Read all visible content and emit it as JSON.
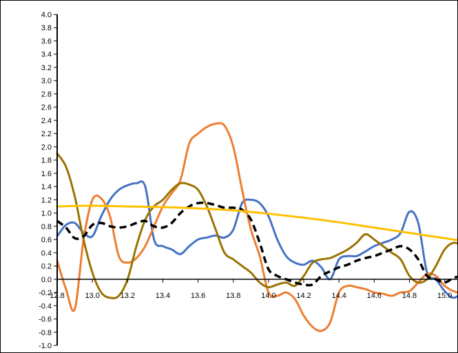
{
  "chart_data": {
    "type": "line",
    "title": "",
    "xlabel": "",
    "ylabel": "",
    "xlim": [
      12.8,
      15.15
    ],
    "ylim": [
      -1.0,
      4.0
    ],
    "x_ticks": [
      12.8,
      13.0,
      13.2,
      13.4,
      13.6,
      13.8,
      14.0,
      14.2,
      14.4,
      14.6,
      14.8,
      15.0
    ],
    "x_tick_labels": [
      "12.8",
      "13.0",
      "13.2",
      "13.4",
      "13.6",
      "13.8",
      "14.0",
      "14.2",
      "14.4",
      "14.6",
      "14.8",
      "15.0"
    ],
    "y_ticks": [
      -1.0,
      -0.8,
      -0.6,
      -0.4,
      -0.2,
      0.0,
      0.2,
      0.4,
      0.6,
      0.8,
      1.0,
      1.2,
      1.4,
      1.6,
      1.8,
      2.0,
      2.2,
      2.4,
      2.6,
      2.8,
      3.0,
      3.2,
      3.4,
      3.6,
      3.8,
      4.0
    ],
    "y_tick_labels": [
      "-1.0",
      "-0.8",
      "-0.6",
      "-0.4",
      "-0.2",
      "0.0",
      "0.2",
      "0.4",
      "0.6",
      "0.8",
      "1.0",
      "1.2",
      "1.4",
      "1.6",
      "1.8",
      "2.0",
      "2.2",
      "2.4",
      "2.6",
      "2.8",
      "3.0",
      "3.2",
      "3.4",
      "3.6",
      "3.8",
      "4.0"
    ],
    "grid": false,
    "legend": "none",
    "series": [
      {
        "color": "#4472C4",
        "style": "solid",
        "x": [
          12.8,
          12.85,
          12.9,
          12.95,
          13.0,
          13.05,
          13.1,
          13.15,
          13.2,
          13.25,
          13.3,
          13.35,
          13.4,
          13.45,
          13.5,
          13.55,
          13.6,
          13.65,
          13.7,
          13.75,
          13.8,
          13.85,
          13.9,
          13.95,
          14.0,
          14.05,
          14.1,
          14.15,
          14.2,
          14.25,
          14.3,
          14.35,
          14.4,
          14.45,
          14.5,
          14.55,
          14.6,
          14.65,
          14.7,
          14.75,
          14.8,
          14.85,
          14.9,
          14.95,
          15.0,
          15.05,
          15.1,
          15.15
        ],
        "y": [
          0.65,
          0.82,
          0.85,
          0.7,
          0.65,
          0.95,
          1.2,
          1.35,
          1.42,
          1.45,
          1.4,
          0.6,
          0.5,
          0.45,
          0.38,
          0.5,
          0.6,
          0.63,
          0.66,
          0.63,
          0.75,
          1.15,
          1.2,
          1.15,
          0.95,
          0.6,
          0.35,
          0.25,
          0.22,
          0.28,
          0.18,
          0.0,
          0.3,
          0.35,
          0.35,
          0.42,
          0.5,
          0.55,
          0.6,
          0.7,
          1.02,
          0.85,
          0.1,
          0.0,
          -0.18,
          -0.28,
          -0.2,
          -0.1
        ]
      },
      {
        "color": "#ED7D31",
        "style": "solid",
        "x": [
          12.8,
          12.85,
          12.9,
          12.95,
          13.0,
          13.05,
          13.1,
          13.15,
          13.2,
          13.25,
          13.3,
          13.35,
          13.4,
          13.45,
          13.5,
          13.55,
          13.6,
          13.65,
          13.7,
          13.75,
          13.8,
          13.85,
          13.9,
          13.95,
          14.0,
          14.05,
          14.1,
          14.15,
          14.2,
          14.25,
          14.3,
          14.35,
          14.4,
          14.45,
          14.5,
          14.55,
          14.6,
          14.65,
          14.7,
          14.75,
          14.8,
          14.85,
          14.9,
          14.95,
          15.0,
          15.05,
          15.1,
          15.15
        ],
        "y": [
          0.28,
          -0.15,
          -0.45,
          0.6,
          1.2,
          1.22,
          0.95,
          0.35,
          0.25,
          0.32,
          0.5,
          0.8,
          1.1,
          1.3,
          1.5,
          2.05,
          2.2,
          2.3,
          2.35,
          2.32,
          2.0,
          1.35,
          0.75,
          0.35,
          -0.2,
          -0.25,
          -0.2,
          -0.3,
          -0.55,
          -0.72,
          -0.78,
          -0.65,
          -0.2,
          -0.1,
          -0.12,
          -0.15,
          -0.2,
          -0.22,
          -0.25,
          -0.2,
          -0.18,
          -0.05,
          0.08,
          0.05,
          -0.1,
          -0.18,
          -0.2,
          -0.1
        ]
      },
      {
        "color": "#997300",
        "style": "solid",
        "x": [
          12.8,
          12.85,
          12.9,
          12.95,
          13.0,
          13.05,
          13.1,
          13.15,
          13.2,
          13.25,
          13.3,
          13.35,
          13.4,
          13.45,
          13.5,
          13.55,
          13.6,
          13.65,
          13.7,
          13.75,
          13.8,
          13.85,
          13.9,
          13.95,
          14.0,
          14.05,
          14.1,
          14.15,
          14.2,
          14.25,
          14.3,
          14.35,
          14.4,
          14.45,
          14.5,
          14.55,
          14.6,
          14.65,
          14.7,
          14.75,
          14.8,
          14.85,
          14.9,
          14.95,
          15.0,
          15.05,
          15.1,
          15.15
        ],
        "y": [
          1.9,
          1.7,
          1.25,
          0.6,
          0.1,
          -0.2,
          -0.28,
          -0.25,
          0.0,
          0.5,
          0.9,
          1.1,
          1.2,
          1.35,
          1.45,
          1.43,
          1.35,
          1.1,
          0.75,
          0.4,
          0.3,
          0.2,
          0.1,
          -0.05,
          -0.12,
          -0.08,
          -0.05,
          -0.1,
          0.05,
          0.25,
          0.3,
          0.32,
          0.38,
          0.45,
          0.55,
          0.68,
          0.6,
          0.5,
          0.4,
          0.3,
          0.05,
          -0.05,
          0.0,
          0.2,
          0.45,
          0.55,
          0.5,
          0.4
        ]
      },
      {
        "color": "#000000",
        "style": "dashed",
        "x": [
          12.8,
          12.85,
          12.9,
          12.95,
          13.0,
          13.05,
          13.1,
          13.15,
          13.2,
          13.25,
          13.3,
          13.35,
          13.4,
          13.45,
          13.5,
          13.55,
          13.6,
          13.65,
          13.7,
          13.75,
          13.8,
          13.85,
          13.9,
          13.95,
          14.0,
          14.05,
          14.1,
          14.15,
          14.2,
          14.25,
          14.3,
          14.35,
          14.4,
          14.45,
          14.5,
          14.55,
          14.6,
          14.65,
          14.7,
          14.75,
          14.8,
          14.85,
          14.9,
          14.95,
          15.0,
          15.05,
          15.1,
          15.15
        ],
        "y": [
          0.88,
          0.78,
          0.62,
          0.65,
          0.82,
          0.85,
          0.8,
          0.78,
          0.8,
          0.85,
          0.88,
          0.8,
          0.78,
          0.85,
          1.0,
          1.1,
          1.15,
          1.15,
          1.12,
          1.08,
          1.08,
          1.05,
          0.9,
          0.55,
          0.15,
          0.05,
          0.0,
          -0.05,
          -0.08,
          -0.08,
          0.05,
          0.12,
          0.18,
          0.22,
          0.28,
          0.32,
          0.35,
          0.4,
          0.45,
          0.5,
          0.45,
          0.3,
          0.05,
          0.0,
          -0.05,
          0.02,
          0.05,
          0.08
        ]
      },
      {
        "color": "#FFC000",
        "style": "solid",
        "x": [
          12.8,
          13.0,
          13.2,
          13.4,
          13.6,
          13.8,
          14.0,
          14.2,
          14.4,
          14.6,
          14.8,
          15.0,
          15.15
        ],
        "y": [
          1.1,
          1.11,
          1.1,
          1.09,
          1.07,
          1.04,
          0.99,
          0.93,
          0.86,
          0.78,
          0.7,
          0.62,
          0.56
        ]
      }
    ]
  }
}
